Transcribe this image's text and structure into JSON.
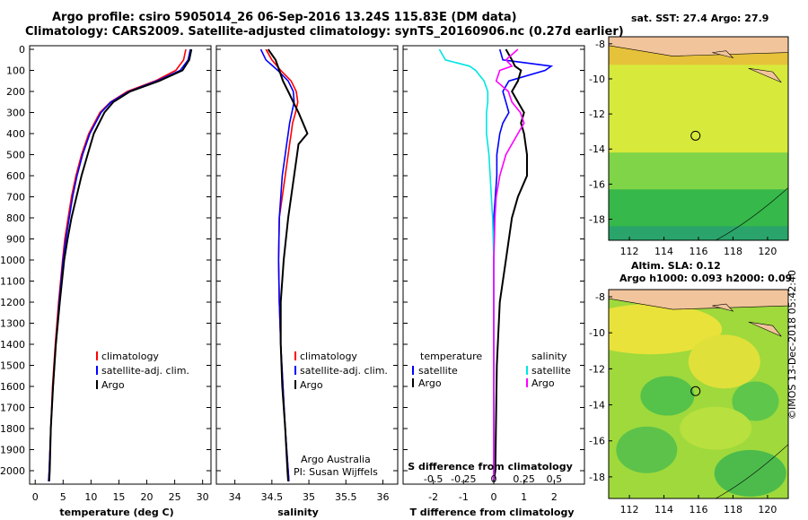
{
  "header": {
    "title_line1": "Argo profile: csiro 5905014_26 06-Sep-2016 13.24S 115.83E (DM data)",
    "title_line2": "Climatology: CARS2009. Satellite-adjusted climatology: synTS_20160906.nc (0.27d earlier)"
  },
  "credit": {
    "argo_australia": "Argo Australia",
    "pi": "PI: Susan Wijffels",
    "imos_stamp": "©IMOS 13-Dec-2018 05:42:40"
  },
  "colors": {
    "climatology": "#ff0000",
    "satellite": "#0000ff",
    "argo": "#000000",
    "sat_diff_s": "#00e5e5",
    "argo_diff_s": "#ff00ff",
    "land": "#f2c49b"
  },
  "chart_data": [
    {
      "type": "line",
      "title": "temperature profile",
      "xlabel": "temperature (deg C)",
      "ylabel": "",
      "xlim": [
        -1,
        31.5
      ],
      "ylim": [
        2100,
        0
      ],
      "xticks": [
        "0",
        "5",
        "10",
        "15",
        "20",
        "25",
        "30"
      ],
      "yticks": [
        "0",
        "100",
        "200",
        "300",
        "400",
        "500",
        "600",
        "700",
        "800",
        "900",
        "1000",
        "1100",
        "1200",
        "1300",
        "1400",
        "1500",
        "1600",
        "1700",
        "1800",
        "1900",
        "2000"
      ],
      "legend": [
        "climatology",
        "satellite-adj. clim.",
        "Argo"
      ],
      "depth": [
        0,
        50,
        100,
        150,
        200,
        250,
        300,
        400,
        500,
        600,
        700,
        800,
        900,
        1000,
        1200,
        1400,
        1600,
        1800,
        2000,
        2050
      ],
      "series": [
        {
          "name": "climatology",
          "values": [
            27.0,
            26.6,
            25.2,
            21.5,
            16.5,
            13.5,
            11.6,
            9.6,
            8.3,
            7.3,
            6.5,
            5.9,
            5.3,
            4.9,
            4.2,
            3.6,
            3.1,
            2.8,
            2.5,
            2.4
          ]
        },
        {
          "name": "satellite-adj. clim.",
          "values": [
            27.8,
            27.4,
            26.0,
            21.8,
            16.8,
            13.6,
            11.8,
            9.8,
            8.5,
            7.5,
            6.7,
            6.1,
            5.5,
            5.0,
            4.3,
            3.7,
            3.2,
            2.8,
            2.5,
            2.4
          ]
        },
        {
          "name": "Argo",
          "values": [
            28.0,
            27.6,
            26.4,
            22.2,
            17.0,
            14.0,
            12.4,
            10.5,
            9.4,
            8.3,
            7.4,
            6.5,
            5.8,
            5.2,
            4.4,
            3.7,
            3.2,
            2.8,
            2.6,
            2.5
          ]
        }
      ]
    },
    {
      "type": "line",
      "title": "salinity profile",
      "xlabel": "salinity",
      "xlim": [
        33.75,
        36.2
      ],
      "ylim": [
        2100,
        0
      ],
      "xticks": [
        "34",
        "34.5",
        "35",
        "35.5",
        "36"
      ],
      "legend": [
        "climatology",
        "satellite-adj. clim.",
        "Argo"
      ],
      "depth": [
        0,
        50,
        100,
        150,
        200,
        250,
        300,
        350,
        400,
        450,
        500,
        600,
        800,
        1000,
        1200,
        1400,
        1600,
        1800,
        2000,
        2050
      ],
      "series": [
        {
          "name": "climatology",
          "values": [
            34.42,
            34.5,
            34.62,
            34.76,
            34.83,
            34.85,
            34.82,
            34.78,
            34.76,
            34.74,
            34.72,
            34.68,
            34.6,
            34.59,
            34.6,
            34.62,
            34.65,
            34.68,
            34.72,
            34.73
          ]
        },
        {
          "name": "satellite-adj. clim.",
          "values": [
            34.35,
            34.42,
            34.58,
            34.72,
            34.79,
            34.8,
            34.77,
            34.74,
            34.72,
            34.7,
            34.68,
            34.64,
            34.6,
            34.59,
            34.6,
            34.62,
            34.65,
            34.68,
            34.72,
            34.73
          ]
        },
        {
          "name": "Argo",
          "values": [
            34.45,
            34.55,
            34.6,
            34.65,
            34.72,
            34.79,
            34.86,
            34.92,
            34.98,
            34.86,
            34.84,
            34.8,
            34.72,
            34.66,
            34.62,
            34.62,
            34.64,
            34.68,
            34.71,
            34.72
          ]
        }
      ]
    },
    {
      "type": "line",
      "title": "difference from climatology",
      "xlabel_bottom": "T difference from climatology",
      "xlabel_top": "S difference from climatology",
      "xlim": [
        -3,
        3
      ],
      "ylim": [
        2100,
        0
      ],
      "xticks_T": [
        "-2",
        "-1",
        "0",
        "1",
        "2"
      ],
      "xticks_S": [
        "-0.5",
        "-0.25",
        "0",
        "0.25",
        "0.5"
      ],
      "legend_left_title": "temperature",
      "legend_right_title": "salinity",
      "legend_left": [
        "satellite",
        "Argo"
      ],
      "legend_right": [
        "satellite",
        "Argo"
      ],
      "depth": [
        0,
        50,
        80,
        100,
        150,
        200,
        250,
        300,
        350,
        400,
        500,
        600,
        700,
        800,
        1000,
        1200,
        1500,
        2000,
        2050
      ],
      "series": [
        {
          "name": "T satellite",
          "values": [
            0.2,
            0.3,
            1.9,
            1.7,
            0.5,
            0.3,
            0.4,
            0.5,
            0.3,
            0.2,
            0.1,
            0.1,
            0.05,
            0.0,
            0.0,
            0.0,
            0.0,
            0.0,
            0.0
          ]
        },
        {
          "name": "T Argo",
          "values": [
            0.4,
            0.6,
            0.7,
            0.9,
            0.8,
            0.6,
            0.8,
            1.0,
            0.9,
            1.0,
            1.1,
            1.1,
            0.8,
            0.6,
            0.4,
            0.2,
            0.1,
            0.05,
            0.0
          ]
        },
        {
          "name": "S satellite",
          "values": [
            -0.45,
            -0.4,
            -0.2,
            -0.15,
            -0.08,
            -0.05,
            -0.05,
            -0.06,
            -0.06,
            -0.06,
            -0.04,
            -0.03,
            -0.02,
            -0.01,
            0.0,
            0.0,
            0.0,
            0.0,
            0.0
          ]
        },
        {
          "name": "S Argo",
          "values": [
            0.2,
            0.1,
            0.15,
            0.05,
            0.02,
            0.12,
            0.15,
            0.22,
            0.25,
            0.2,
            0.1,
            0.05,
            0.02,
            0.01,
            0.0,
            0.0,
            0.0,
            0.0,
            0.0
          ]
        }
      ]
    },
    {
      "type": "heatmap",
      "title": "sat. SST: 27.4 Argo: 27.9",
      "xlim": [
        110.8,
        121.2
      ],
      "ylim": [
        -19.2,
        -7.6
      ],
      "xticks": [
        "112",
        "114",
        "116",
        "118",
        "120"
      ],
      "yticks": [
        "-8",
        "-10",
        "-12",
        "-14",
        "-16",
        "-18"
      ],
      "marker": {
        "lon": 115.83,
        "lat": -13.24
      }
    },
    {
      "type": "heatmap",
      "title_line1": "Altim. SLA: 0.12",
      "title_line2": "Argo h1000: 0.093 h2000: 0.09",
      "xlim": [
        110.8,
        121.2
      ],
      "ylim": [
        -19.2,
        -7.6
      ],
      "xticks": [
        "112",
        "114",
        "116",
        "118",
        "120"
      ],
      "yticks": [
        "-8",
        "-10",
        "-12",
        "-14",
        "-16",
        "-18"
      ],
      "marker": {
        "lon": 115.83,
        "lat": -13.24
      }
    }
  ]
}
